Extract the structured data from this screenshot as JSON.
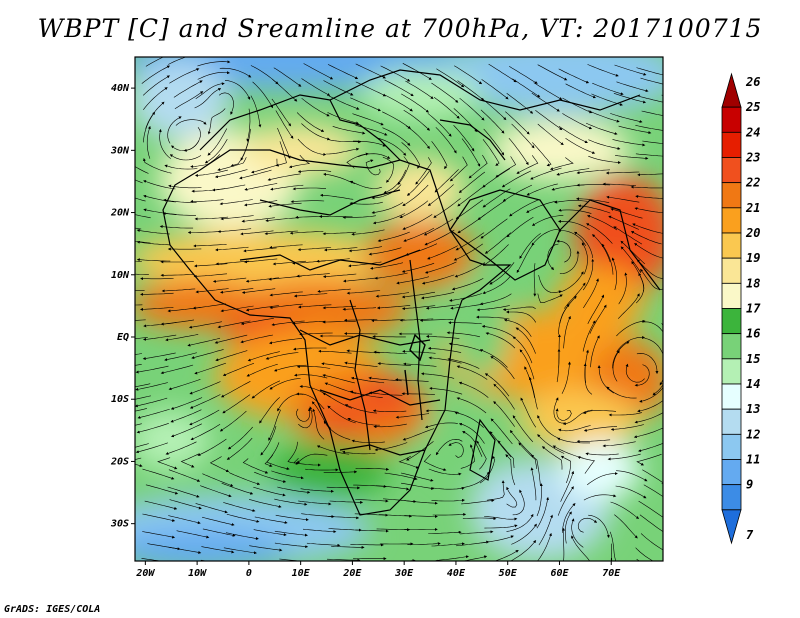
{
  "title": "WBPT [C] and Sreamline at 700hPa, VT: 2017100715",
  "credit": "GrADS: IGES/COLA",
  "map": {
    "lon_range": [
      -22,
      80
    ],
    "lat_range": [
      -36,
      45
    ],
    "lat_ticks": [
      {
        "value": 40,
        "label": "40N"
      },
      {
        "value": 30,
        "label": "30N"
      },
      {
        "value": 20,
        "label": "20N"
      },
      {
        "value": 10,
        "label": "10N"
      },
      {
        "value": 0,
        "label": "EQ"
      },
      {
        "value": -10,
        "label": "10S"
      },
      {
        "value": -20,
        "label": "20S"
      },
      {
        "value": -30,
        "label": "30S"
      }
    ],
    "lon_ticks": [
      {
        "value": -20,
        "label": "20W"
      },
      {
        "value": -10,
        "label": "10W"
      },
      {
        "value": 0,
        "label": "0"
      },
      {
        "value": 10,
        "label": "10E"
      },
      {
        "value": 20,
        "label": "20E"
      },
      {
        "value": 30,
        "label": "30E"
      },
      {
        "value": 40,
        "label": "40E"
      },
      {
        "value": 50,
        "label": "50E"
      },
      {
        "value": 60,
        "label": "60E"
      },
      {
        "value": 70,
        "label": "70E"
      }
    ]
  },
  "colorbar": {
    "levels": [
      {
        "label": "26",
        "color": "#a00000"
      },
      {
        "label": "25",
        "color": "#c80000"
      },
      {
        "label": "24",
        "color": "#e61e00"
      },
      {
        "label": "23",
        "color": "#f0501e"
      },
      {
        "label": "22",
        "color": "#f07814"
      },
      {
        "label": "21",
        "color": "#faa01e"
      },
      {
        "label": "20",
        "color": "#fac850"
      },
      {
        "label": "19",
        "color": "#fae696"
      },
      {
        "label": "18",
        "color": "#faf8c8"
      },
      {
        "label": "17",
        "color": "#3cb43c"
      },
      {
        "label": "16",
        "color": "#78d278"
      },
      {
        "label": "15",
        "color": "#b4f0b4"
      },
      {
        "label": "14",
        "color": "#e6ffff"
      },
      {
        "label": "13",
        "color": "#b4dcf0"
      },
      {
        "label": "12",
        "color": "#8cc8f0"
      },
      {
        "label": "11",
        "color": "#64aaf0"
      },
      {
        "label": "9",
        "color": "#3c8ce6"
      },
      {
        "label": "7",
        "color": "#1e6edc"
      }
    ]
  }
}
